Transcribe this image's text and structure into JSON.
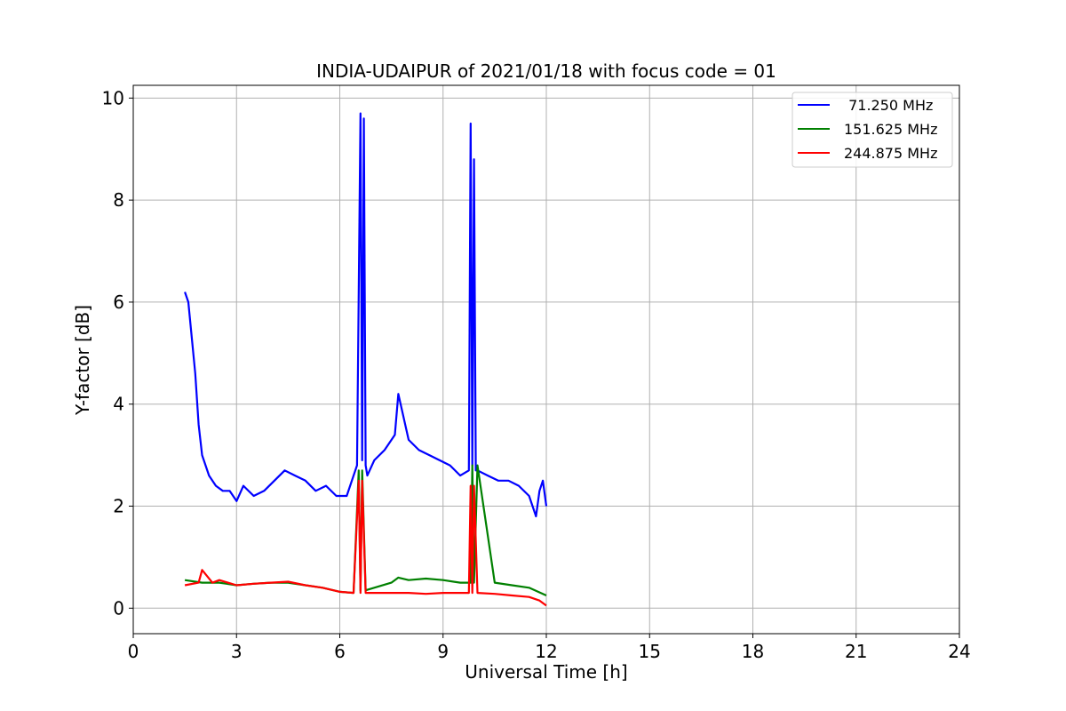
{
  "chart_data": {
    "type": "line",
    "title": "INDIA-UDAIPUR of 2021/01/18 with focus code = 01",
    "xlabel": "Universal Time [h]",
    "ylabel": "Y-factor [dB]",
    "xlim": [
      0,
      24
    ],
    "ylim": [
      -0.5,
      10.25
    ],
    "xticks": [
      0,
      3,
      6,
      9,
      12,
      15,
      18,
      21,
      24
    ],
    "yticks": [
      0,
      2,
      4,
      6,
      8,
      10
    ],
    "xtick_labels": [
      "0",
      "3",
      "6",
      "9",
      "12",
      "15",
      "18",
      "21",
      "24"
    ],
    "ytick_labels": [
      "0",
      "2",
      "4",
      "6",
      "8",
      "10"
    ],
    "grid": true,
    "legend_position": "top-right",
    "series": [
      {
        "name": " 71.250 MHz",
        "color": "#0000ff",
        "x": [
          1.5,
          1.6,
          1.7,
          1.8,
          1.9,
          2.0,
          2.2,
          2.4,
          2.6,
          2.8,
          3.0,
          3.2,
          3.5,
          3.8,
          4.1,
          4.4,
          4.7,
          5.0,
          5.3,
          5.6,
          5.9,
          6.2,
          6.5,
          6.6,
          6.65,
          6.7,
          6.75,
          6.8,
          7.0,
          7.3,
          7.6,
          7.7,
          8.0,
          8.3,
          8.6,
          8.9,
          9.2,
          9.5,
          9.75,
          9.8,
          9.85,
          9.9,
          9.95,
          10.0,
          10.3,
          10.6,
          10.9,
          11.2,
          11.5,
          11.7,
          11.8,
          11.9,
          12.0
        ],
        "y": [
          6.2,
          6.0,
          5.3,
          4.6,
          3.6,
          3.0,
          2.6,
          2.4,
          2.3,
          2.3,
          2.1,
          2.4,
          2.2,
          2.3,
          2.5,
          2.7,
          2.6,
          2.5,
          2.3,
          2.4,
          2.2,
          2.2,
          2.8,
          9.7,
          2.9,
          9.6,
          2.8,
          2.6,
          2.9,
          3.1,
          3.4,
          4.2,
          3.3,
          3.1,
          3.0,
          2.9,
          2.8,
          2.6,
          2.7,
          9.5,
          2.8,
          8.8,
          2.7,
          2.7,
          2.6,
          2.5,
          2.5,
          2.4,
          2.2,
          1.8,
          2.3,
          2.5,
          2.0
        ]
      },
      {
        "name": "151.625 MHz",
        "color": "#008000",
        "x": [
          1.5,
          2.0,
          2.5,
          3.0,
          3.5,
          4.0,
          4.5,
          5.0,
          5.5,
          6.0,
          6.4,
          6.55,
          6.6,
          6.65,
          6.75,
          7.0,
          7.5,
          7.7,
          8.0,
          8.5,
          9.0,
          9.5,
          9.8,
          9.85,
          9.9,
          10.0,
          10.5,
          11.0,
          11.5,
          12.0
        ],
        "y": [
          0.55,
          0.5,
          0.5,
          0.45,
          0.48,
          0.5,
          0.5,
          0.45,
          0.4,
          0.32,
          0.3,
          2.7,
          0.35,
          2.7,
          0.35,
          0.4,
          0.5,
          0.6,
          0.55,
          0.58,
          0.55,
          0.5,
          0.5,
          2.8,
          0.5,
          2.8,
          0.5,
          0.45,
          0.4,
          0.25
        ]
      },
      {
        "name": "244.875 MHz",
        "color": "#ff0000",
        "x": [
          1.5,
          1.9,
          2.0,
          2.3,
          2.5,
          3.0,
          3.5,
          4.0,
          4.5,
          5.0,
          5.5,
          6.0,
          6.4,
          6.55,
          6.6,
          6.65,
          6.75,
          7.0,
          7.5,
          8.0,
          8.5,
          9.0,
          9.5,
          9.75,
          9.8,
          9.85,
          9.9,
          10.0,
          10.5,
          11.0,
          11.5,
          11.8,
          12.0
        ],
        "y": [
          0.45,
          0.5,
          0.75,
          0.5,
          0.55,
          0.45,
          0.48,
          0.5,
          0.52,
          0.45,
          0.4,
          0.32,
          0.3,
          2.5,
          0.3,
          2.5,
          0.3,
          0.3,
          0.3,
          0.3,
          0.28,
          0.3,
          0.3,
          0.3,
          2.4,
          0.3,
          2.4,
          0.3,
          0.28,
          0.25,
          0.22,
          0.15,
          0.05
        ]
      }
    ]
  }
}
